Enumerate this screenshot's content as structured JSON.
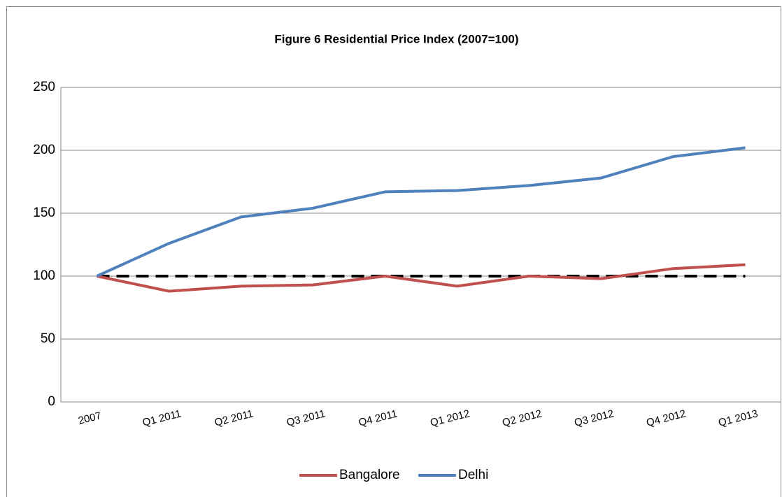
{
  "chart_data": {
    "type": "line",
    "title": "Figure 6 Residential Price Index (2007=100)",
    "categories": [
      "2007",
      "Q1 2011",
      "Q2 2011",
      "Q3 2011",
      "Q4 2011",
      "Q1 2012",
      "Q2 2012",
      "Q3 2012",
      "Q4 2012",
      "Q1 2013"
    ],
    "series": [
      {
        "name": "Bangalore",
        "color": "#c0504d",
        "values": [
          100,
          88,
          92,
          93,
          100,
          92,
          100,
          98,
          106,
          109
        ]
      },
      {
        "name": "Delhi",
        "color": "#4f81bd",
        "values": [
          100,
          126,
          147,
          154,
          167,
          168,
          172,
          178,
          195,
          202
        ]
      }
    ],
    "baseline": {
      "value": 100,
      "color": "#000000",
      "dashed": true
    },
    "ylim": [
      0,
      250
    ],
    "yticks": [
      0,
      50,
      100,
      150,
      200,
      250
    ],
    "grid": true,
    "legend": "bottom"
  }
}
